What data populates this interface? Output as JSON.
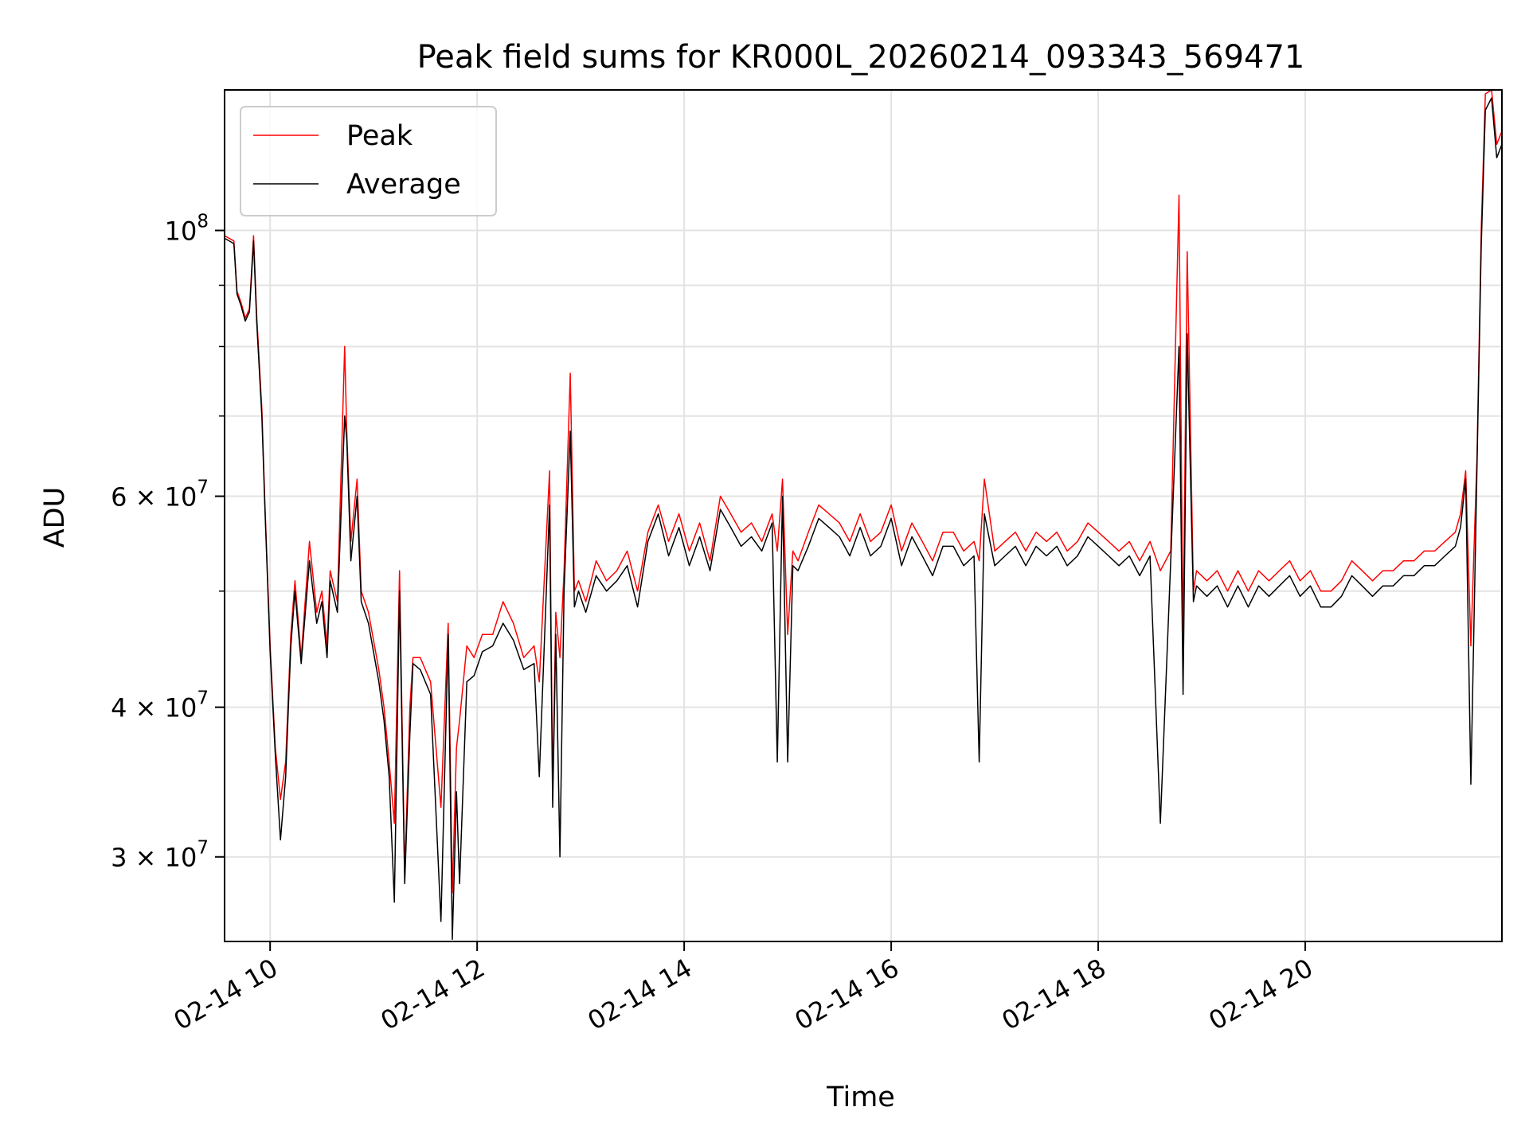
{
  "chart_data": {
    "type": "line",
    "title": "Peak field sums for KR000L_20260214_093343_569471",
    "xlabel": "Time",
    "ylabel": "ADU",
    "yscale": "log",
    "ylim": [
      25500000,
      131000000
    ],
    "xlim": [
      9.56,
      21.9
    ],
    "x_unit": "hours on 2026-02-14",
    "grid": true,
    "legend_position": "top-left",
    "x_ticks": [
      {
        "value": 10,
        "label": "02-14 10"
      },
      {
        "value": 12,
        "label": "02-14 12"
      },
      {
        "value": 14,
        "label": "02-14 14"
      },
      {
        "value": 16,
        "label": "02-14 16"
      },
      {
        "value": 18,
        "label": "02-14 18"
      },
      {
        "value": 20,
        "label": "02-14 20"
      }
    ],
    "y_ticks": [
      {
        "value": 30000000,
        "mantissa": "3",
        "times": "×",
        "base": "10",
        "exp": "7"
      },
      {
        "value": 40000000,
        "mantissa": "4",
        "times": "×",
        "base": "10",
        "exp": "7"
      },
      {
        "value": 60000000,
        "mantissa": "6",
        "times": "×",
        "base": "10",
        "exp": "7"
      },
      {
        "value": 100000000,
        "mantissa": "",
        "times": "",
        "base": "10",
        "exp": "8"
      }
    ],
    "y_minor_ticks": [
      50000000,
      70000000,
      80000000,
      90000000
    ],
    "series": [
      {
        "name": "Peak",
        "color": "#ff0000",
        "x": [
          9.56,
          9.65,
          9.68,
          9.72,
          9.76,
          9.8,
          9.84,
          9.87,
          9.92,
          9.95,
          10.0,
          10.05,
          10.1,
          10.15,
          10.2,
          10.24,
          10.3,
          10.38,
          10.45,
          10.5,
          10.55,
          10.58,
          10.65,
          10.72,
          10.74,
          10.78,
          10.84,
          10.88,
          10.95,
          11.05,
          11.1,
          11.15,
          11.2,
          11.25,
          11.3,
          11.35,
          11.38,
          11.45,
          11.55,
          11.65,
          11.72,
          11.76,
          11.8,
          11.83,
          11.9,
          11.97,
          12.05,
          12.15,
          12.25,
          12.35,
          12.45,
          12.55,
          12.6,
          12.7,
          12.73,
          12.76,
          12.8,
          12.84,
          12.9,
          12.94,
          12.98,
          13.05,
          13.15,
          13.25,
          13.35,
          13.45,
          13.55,
          13.65,
          13.75,
          13.85,
          13.95,
          14.05,
          14.15,
          14.25,
          14.35,
          14.45,
          14.55,
          14.65,
          14.75,
          14.85,
          14.9,
          14.95,
          15.0,
          15.05,
          15.1,
          15.2,
          15.3,
          15.4,
          15.5,
          15.6,
          15.7,
          15.8,
          15.9,
          16.0,
          16.1,
          16.2,
          16.3,
          16.4,
          16.5,
          16.6,
          16.7,
          16.8,
          16.85,
          16.9,
          17.0,
          17.1,
          17.2,
          17.3,
          17.4,
          17.5,
          17.6,
          17.7,
          17.8,
          17.9,
          18.0,
          18.1,
          18.2,
          18.3,
          18.4,
          18.5,
          18.6,
          18.7,
          18.78,
          18.82,
          18.86,
          18.92,
          18.95,
          19.05,
          19.15,
          19.25,
          19.35,
          19.45,
          19.55,
          19.65,
          19.75,
          19.85,
          19.95,
          20.05,
          20.15,
          20.25,
          20.35,
          20.45,
          20.55,
          20.65,
          20.75,
          20.85,
          20.95,
          21.05,
          21.15,
          21.25,
          21.35,
          21.45,
          21.5,
          21.55,
          21.6,
          21.66,
          21.7,
          21.74,
          21.8,
          21.85,
          21.9
        ],
        "y": [
          99000000,
          98000000,
          89000000,
          87000000,
          84500000,
          86000000,
          99000000,
          85000000,
          71000000,
          59000000,
          45000000,
          37000000,
          33500000,
          36000000,
          46000000,
          51000000,
          44000000,
          55000000,
          48000000,
          50000000,
          45000000,
          52000000,
          49000000,
          80000000,
          68000000,
          55000000,
          62000000,
          50000000,
          48000000,
          43000000,
          40000000,
          36000000,
          32000000,
          52000000,
          29000000,
          40000000,
          44000000,
          44000000,
          42000000,
          33000000,
          47000000,
          28000000,
          37000000,
          39000000,
          45000000,
          44000000,
          46000000,
          46000000,
          49000000,
          47000000,
          44000000,
          45000000,
          42000000,
          63000000,
          34000000,
          48000000,
          44000000,
          52000000,
          76000000,
          50000000,
          51000000,
          49000000,
          53000000,
          51000000,
          52000000,
          54000000,
          50000000,
          56000000,
          59000000,
          55000000,
          58000000,
          54000000,
          57000000,
          53000000,
          60000000,
          58000000,
          56000000,
          57000000,
          55000000,
          58000000,
          54000000,
          62000000,
          46000000,
          54000000,
          53000000,
          56000000,
          59000000,
          58000000,
          57000000,
          55000000,
          58000000,
          55000000,
          56000000,
          59000000,
          54000000,
          57000000,
          55000000,
          53000000,
          56000000,
          56000000,
          54000000,
          55000000,
          53000000,
          62000000,
          54000000,
          55000000,
          56000000,
          54000000,
          56000000,
          55000000,
          56000000,
          54000000,
          55000000,
          57000000,
          56000000,
          55000000,
          54000000,
          55000000,
          53000000,
          55000000,
          52000000,
          54000000,
          107000000,
          45000000,
          96000000,
          50000000,
          52000000,
          51000000,
          52000000,
          50000000,
          52000000,
          50000000,
          52000000,
          51000000,
          52000000,
          53000000,
          51000000,
          52000000,
          50000000,
          50000000,
          51000000,
          53000000,
          52000000,
          51000000,
          52000000,
          52000000,
          53000000,
          53000000,
          54000000,
          54000000,
          55000000,
          56000000,
          58000000,
          63000000,
          45000000,
          65000000,
          100000000,
          130000000,
          131000000,
          118000000,
          121000000
        ]
      },
      {
        "name": "Average",
        "color": "#000000",
        "x": [
          9.56,
          9.65,
          9.68,
          9.72,
          9.76,
          9.8,
          9.84,
          9.87,
          9.92,
          9.95,
          10.0,
          10.05,
          10.1,
          10.15,
          10.2,
          10.24,
          10.3,
          10.38,
          10.45,
          10.5,
          10.55,
          10.58,
          10.65,
          10.72,
          10.74,
          10.78,
          10.84,
          10.88,
          10.95,
          11.05,
          11.1,
          11.15,
          11.2,
          11.25,
          11.3,
          11.35,
          11.38,
          11.45,
          11.55,
          11.65,
          11.72,
          11.76,
          11.8,
          11.83,
          11.9,
          11.97,
          12.05,
          12.15,
          12.25,
          12.35,
          12.45,
          12.55,
          12.6,
          12.7,
          12.73,
          12.76,
          12.8,
          12.84,
          12.9,
          12.94,
          12.98,
          13.05,
          13.15,
          13.25,
          13.35,
          13.45,
          13.55,
          13.65,
          13.75,
          13.85,
          13.95,
          14.05,
          14.15,
          14.25,
          14.35,
          14.45,
          14.55,
          14.65,
          14.75,
          14.85,
          14.9,
          14.95,
          15.0,
          15.05,
          15.1,
          15.2,
          15.3,
          15.4,
          15.5,
          15.6,
          15.7,
          15.8,
          15.9,
          16.0,
          16.1,
          16.2,
          16.3,
          16.4,
          16.5,
          16.6,
          16.7,
          16.8,
          16.85,
          16.9,
          17.0,
          17.1,
          17.2,
          17.3,
          17.4,
          17.5,
          17.6,
          17.7,
          17.8,
          17.9,
          18.0,
          18.1,
          18.2,
          18.3,
          18.4,
          18.5,
          18.6,
          18.7,
          18.78,
          18.82,
          18.86,
          18.92,
          18.95,
          19.05,
          19.15,
          19.25,
          19.35,
          19.45,
          19.55,
          19.65,
          19.75,
          19.85,
          19.95,
          20.05,
          20.15,
          20.25,
          20.35,
          20.45,
          20.55,
          20.65,
          20.75,
          20.85,
          20.95,
          21.05,
          21.15,
          21.25,
          21.35,
          21.45,
          21.5,
          21.55,
          21.6,
          21.66,
          21.7,
          21.74,
          21.8,
          21.85,
          21.9
        ],
        "y": [
          98500000,
          97500000,
          88500000,
          86500000,
          84000000,
          85500000,
          98000000,
          84000000,
          70000000,
          58500000,
          44500000,
          36500000,
          31000000,
          35000000,
          45000000,
          50000000,
          43500000,
          53000000,
          47000000,
          49000000,
          44000000,
          51000000,
          48000000,
          70000000,
          67000000,
          53000000,
          60000000,
          49000000,
          47000000,
          42000000,
          39000000,
          35000000,
          27500000,
          50000000,
          28500000,
          38000000,
          43500000,
          43000000,
          41000000,
          26500000,
          46000000,
          25600000,
          34000000,
          28500000,
          42000000,
          42500000,
          44500000,
          45000000,
          47000000,
          45500000,
          43000000,
          43500000,
          35000000,
          59000000,
          33000000,
          46000000,
          30000000,
          50000000,
          68000000,
          48500000,
          50000000,
          48000000,
          51500000,
          50000000,
          51000000,
          52500000,
          48500000,
          55000000,
          58000000,
          53500000,
          56500000,
          52500000,
          55500000,
          52000000,
          58500000,
          56500000,
          54500000,
          55500000,
          54000000,
          57000000,
          36000000,
          60000000,
          36000000,
          52500000,
          52000000,
          54500000,
          57500000,
          56500000,
          55500000,
          53500000,
          56500000,
          53500000,
          54500000,
          57500000,
          52500000,
          55500000,
          53500000,
          51500000,
          54500000,
          54500000,
          52500000,
          53500000,
          36000000,
          58000000,
          52500000,
          53500000,
          54500000,
          52500000,
          54500000,
          53500000,
          54500000,
          52500000,
          53500000,
          55500000,
          54500000,
          53500000,
          52500000,
          53500000,
          51500000,
          53500000,
          32000000,
          53000000,
          80000000,
          41000000,
          82000000,
          49000000,
          50500000,
          49500000,
          50500000,
          48500000,
          50500000,
          48500000,
          50500000,
          49500000,
          50500000,
          51500000,
          49500000,
          50500000,
          48500000,
          48500000,
          49500000,
          51500000,
          50500000,
          49500000,
          50500000,
          50500000,
          51500000,
          51500000,
          52500000,
          52500000,
          53500000,
          54500000,
          56500000,
          62000000,
          34500000,
          64000000,
          97000000,
          126000000,
          129000000,
          115000000,
          118000000
        ]
      }
    ]
  }
}
